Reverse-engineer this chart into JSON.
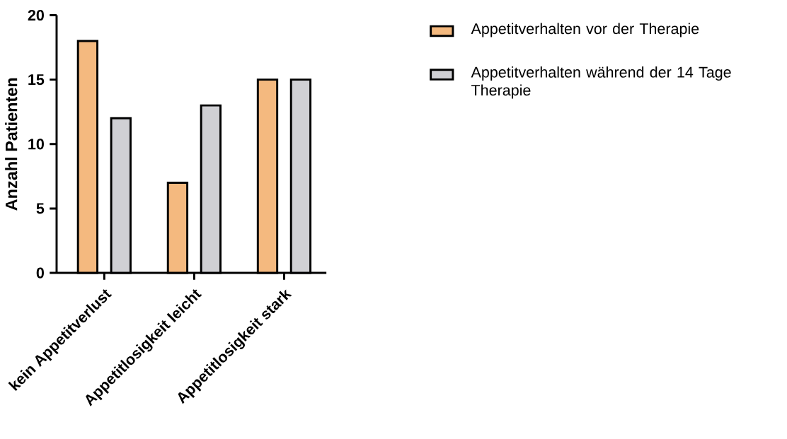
{
  "chart_data": {
    "type": "bar",
    "ylabel": "Anzahl Patienten",
    "categories": [
      "kein Appetitverlust",
      "Appetitlosigkeit leicht",
      "Appetitlosigkeit stark"
    ],
    "series": [
      {
        "name": "Appetitverhalten vor der Therapie",
        "color": "#f4b97f",
        "values": [
          18,
          7,
          15
        ]
      },
      {
        "name": "Appetitverhalten während der 14 Tage Therapie",
        "color": "#d0d0d4",
        "values": [
          12,
          13,
          15
        ]
      }
    ],
    "ylim": [
      0,
      20
    ],
    "yticks": [
      0,
      5,
      10,
      15,
      20
    ],
    "grid": false,
    "legend": "top right"
  }
}
